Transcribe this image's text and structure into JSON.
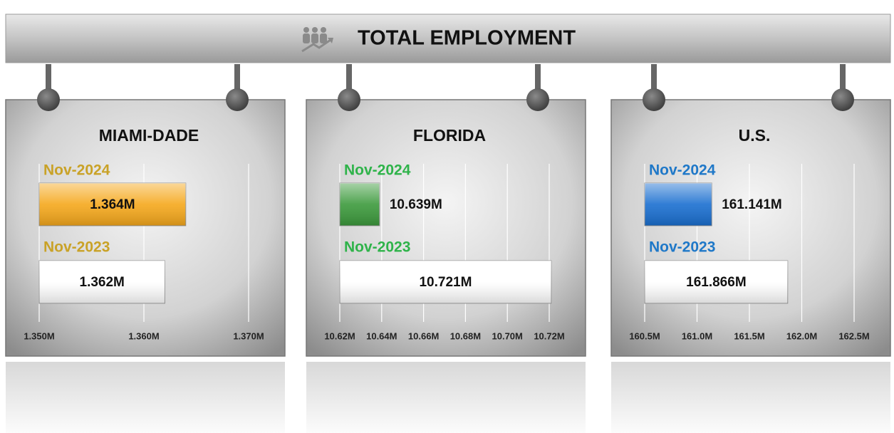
{
  "title": "TOTAL EMPLOYMENT",
  "chart_data": [
    {
      "type": "bar",
      "title": "MIAMI-DADE",
      "categories": [
        "Nov-2024",
        "Nov-2023"
      ],
      "values": [
        1.364,
        1.362
      ],
      "value_labels": [
        "1.364M",
        "1.362M"
      ],
      "colors": [
        "#f5a81c",
        "#ffffff"
      ],
      "label_color": "#c9a227",
      "xlim": [
        1.35,
        1.37
      ],
      "xticks": [
        {
          "value": 1.35,
          "label": "1.350M"
        },
        {
          "value": 1.36,
          "label": "1.360M"
        },
        {
          "value": 1.37,
          "label": "1.370M"
        }
      ],
      "grid": true
    },
    {
      "type": "bar",
      "title": "FLORIDA",
      "categories": [
        "Nov-2024",
        "Nov-2023"
      ],
      "values": [
        10.639,
        10.721
      ],
      "value_labels": [
        "10.639M",
        "10.721M"
      ],
      "colors": [
        "#3c9a3c",
        "#ffffff"
      ],
      "label_color": "#2fb34a",
      "xlim": [
        10.62,
        10.72
      ],
      "xticks": [
        {
          "value": 10.62,
          "label": "10.62M"
        },
        {
          "value": 10.64,
          "label": "10.64M"
        },
        {
          "value": 10.66,
          "label": "10.66M"
        },
        {
          "value": 10.68,
          "label": "10.68M"
        },
        {
          "value": 10.7,
          "label": "10.70M"
        },
        {
          "value": 10.72,
          "label": "10.72M"
        }
      ],
      "grid": true
    },
    {
      "type": "bar",
      "title": "U.S.",
      "categories": [
        "Nov-2024",
        "Nov-2023"
      ],
      "values": [
        161.141,
        161.866
      ],
      "value_labels": [
        "161.141M",
        "161.866M"
      ],
      "colors": [
        "#1a6fd0",
        "#ffffff"
      ],
      "label_color": "#1f78c8",
      "xlim": [
        160.5,
        162.5
      ],
      "xticks": [
        {
          "value": 160.5,
          "label": "160.5M"
        },
        {
          "value": 161.0,
          "label": "161.0M"
        },
        {
          "value": 161.5,
          "label": "161.5M"
        },
        {
          "value": 162.0,
          "label": "162.0M"
        },
        {
          "value": 162.5,
          "label": "162.5M"
        }
      ],
      "grid": true
    }
  ]
}
